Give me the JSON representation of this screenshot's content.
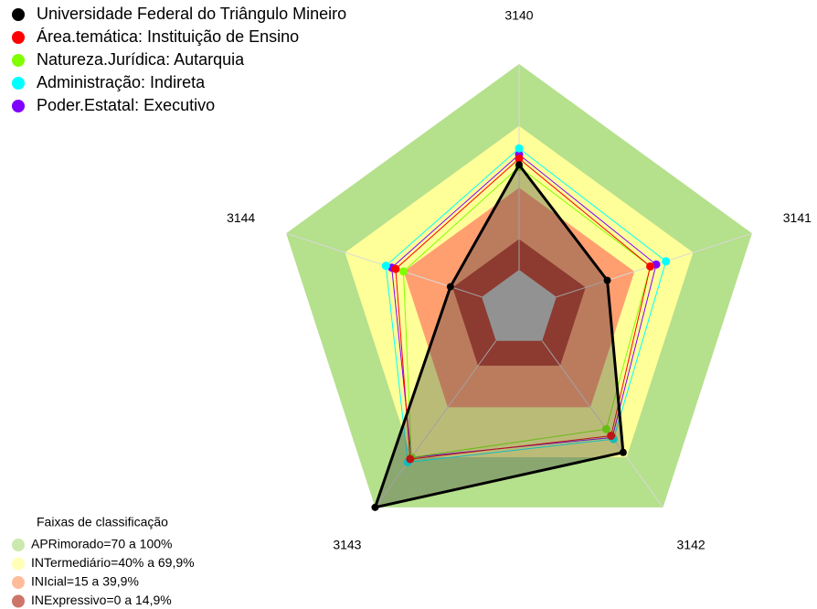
{
  "chart_data": {
    "type": "radar",
    "categories": [
      "3140",
      "3141",
      "3142",
      "3143",
      "3144"
    ],
    "ylim": [
      0,
      100
    ],
    "series": [
      {
        "name": "Universidade Federal do Triângulo Mineiro",
        "color": "#000000",
        "values": [
          51,
          26,
          67,
          100,
          16
        ]
      },
      {
        "name": "Área.temática: Instituição de Ensino",
        "color": "#ff0000",
        "values": [
          54,
          48,
          57,
          71,
          44
        ]
      },
      {
        "name": "Natureza.Jurídica: Autarquia",
        "color": "#80ff00",
        "values": [
          50,
          48,
          53,
          70,
          40
        ]
      },
      {
        "name": "Administração: Indireta",
        "color": "#00ffff",
        "values": [
          59,
          56,
          59,
          73,
          49
        ]
      },
      {
        "name": "Poder.Estatal: Executivo",
        "color": "#8000ff",
        "values": [
          56,
          51,
          58,
          70,
          46
        ]
      }
    ],
    "bands_title": "Faixas de classificação",
    "bands": [
      {
        "label": "APRimorado=70 a 100%",
        "range": [
          70,
          100
        ],
        "color": "#b5e08c"
      },
      {
        "label": "INTermediário=40% a 69,9%",
        "range": [
          40,
          69.9
        ],
        "color": "#ffff99"
      },
      {
        "label": "INIcial=15 a 39,9%",
        "range": [
          15,
          39.9
        ],
        "color": "#ff9f70"
      },
      {
        "label": "INExpressivo=0 a 14,9%",
        "range": [
          0,
          14.9
        ],
        "color": "#b83a2a"
      }
    ]
  }
}
